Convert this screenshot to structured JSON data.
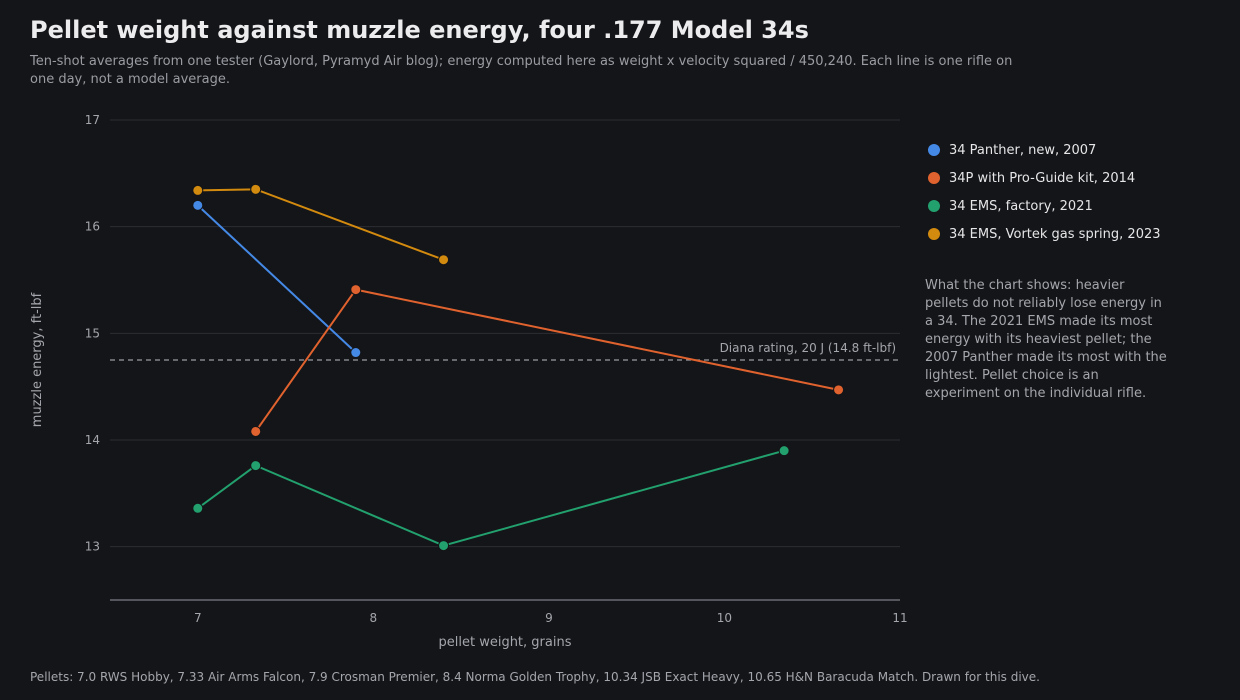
{
  "title": "Pellet weight against muzzle energy, four .177 Model 34s",
  "subtitle": "Ten-shot averages from one tester (Gaylord, Pyramyd Air blog); energy computed here as weight x velocity squared / 450,240. Each line is one rifle on one day, not a model average.",
  "footer": "Pellets: 7.0 RWS Hobby, 7.33 Air Arms Falcon, 7.9 Crosman Premier, 8.4 Norma Golden Trophy, 10.34 JSB Exact Heavy, 10.65 H&N Baracuda Match. Drawn for this dive.",
  "note": "What the chart shows: heavier pellets do not reliably lose energy in a 34. The 2021 EMS made its most energy with its heaviest pellet; the 2007 Panther made its most with the lightest. Pellet choice is an experiment on the individual rifle.",
  "chart_data": {
    "type": "line",
    "xlabel": "pellet weight, grains",
    "ylabel": "muzzle energy, ft-lbf",
    "xlim": [
      6.5,
      11
    ],
    "ylim": [
      12.5,
      17
    ],
    "x_ticks": [
      7,
      8,
      9,
      10,
      11
    ],
    "y_ticks": [
      13,
      14,
      15,
      16,
      17
    ],
    "grid": "horizontal",
    "legend_position": "right",
    "reference_line": {
      "y": 14.75,
      "label": "Diana rating, 20 J (14.8 ft-lbf)"
    },
    "series": [
      {
        "name": "34 Panther, new, 2007",
        "color": "#4589e6",
        "x": [
          7.0,
          7.9
        ],
        "y": [
          16.2,
          14.82
        ]
      },
      {
        "name": "34P with Pro-Guide kit, 2014",
        "color": "#e0622e",
        "x": [
          7.33,
          7.9,
          10.65
        ],
        "y": [
          14.08,
          15.41,
          14.47
        ]
      },
      {
        "name": "34 EMS, factory, 2021",
        "color": "#22a06e",
        "x": [
          7.0,
          7.33,
          8.4,
          10.34
        ],
        "y": [
          13.36,
          13.76,
          13.01,
          13.9
        ]
      },
      {
        "name": "34 EMS, Vortek gas spring, 2023",
        "color": "#d28a0f",
        "x": [
          7.0,
          7.33,
          8.4
        ],
        "y": [
          16.34,
          16.35,
          15.69
        ]
      }
    ]
  }
}
